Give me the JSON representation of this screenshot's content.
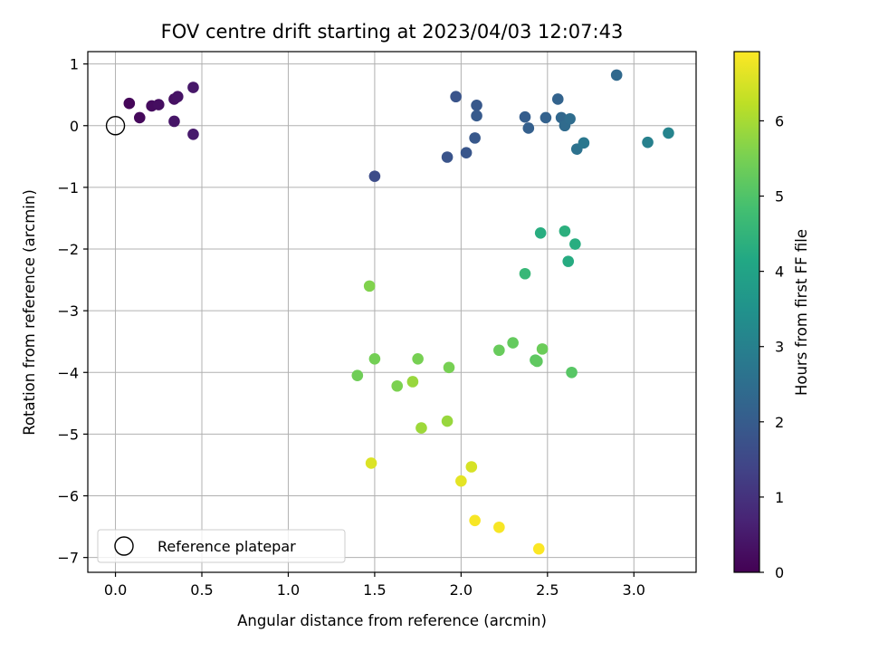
{
  "chart_data": {
    "type": "scatter",
    "title": "FOV centre drift starting at 2023/04/03 12:07:43",
    "xlabel": "Angular distance from reference (arcmin)",
    "ylabel": "Rotation from reference (arcmin)",
    "xlim": [
      -0.16,
      3.36
    ],
    "ylim": [
      -7.24,
      1.2
    ],
    "xticks": [
      0.0,
      0.5,
      1.0,
      1.5,
      2.0,
      2.5,
      3.0
    ],
    "xtick_labels": [
      "0.0",
      "0.5",
      "1.0",
      "1.5",
      "2.0",
      "2.5",
      "3.0"
    ],
    "yticks": [
      1,
      0,
      -1,
      -2,
      -3,
      -4,
      -5,
      -6,
      -7
    ],
    "ytick_labels": [
      "1",
      "0",
      "−1",
      "−2",
      "−3",
      "−4",
      "−5",
      "−6",
      "−7"
    ],
    "grid": true,
    "colormap": "viridis",
    "colorbar": {
      "label": "Hours from first FF file",
      "range": [
        0,
        6.92
      ],
      "ticks": [
        0,
        1,
        2,
        3,
        4,
        5,
        6
      ],
      "tick_labels": [
        "0",
        "1",
        "2",
        "3",
        "4",
        "5",
        "6"
      ]
    },
    "legend": {
      "position": "lower-left",
      "entries": [
        {
          "label": "Reference platepar",
          "marker": "open-circle"
        }
      ]
    },
    "reference_point": {
      "x": 0.0,
      "y": 0.0
    },
    "points": [
      {
        "x": 0.08,
        "y": 0.36,
        "hours": 0.1
      },
      {
        "x": 0.14,
        "y": 0.13,
        "hours": 0.15
      },
      {
        "x": 0.21,
        "y": 0.32,
        "hours": 0.2
      },
      {
        "x": 0.25,
        "y": 0.34,
        "hours": 0.25
      },
      {
        "x": 0.34,
        "y": 0.43,
        "hours": 0.3
      },
      {
        "x": 0.36,
        "y": 0.47,
        "hours": 0.35
      },
      {
        "x": 0.34,
        "y": 0.07,
        "hours": 0.4
      },
      {
        "x": 0.45,
        "y": 0.62,
        "hours": 0.45
      },
      {
        "x": 0.45,
        "y": -0.14,
        "hours": 0.5
      },
      {
        "x": 1.5,
        "y": -0.82,
        "hours": 1.6
      },
      {
        "x": 1.97,
        "y": 0.47,
        "hours": 1.8
      },
      {
        "x": 1.92,
        "y": -0.51,
        "hours": 1.8
      },
      {
        "x": 2.03,
        "y": -0.44,
        "hours": 1.85
      },
      {
        "x": 2.08,
        "y": -0.2,
        "hours": 1.9
      },
      {
        "x": 2.09,
        "y": 0.33,
        "hours": 1.9
      },
      {
        "x": 2.09,
        "y": 0.16,
        "hours": 1.95
      },
      {
        "x": 2.37,
        "y": 0.14,
        "hours": 2.05
      },
      {
        "x": 2.39,
        "y": -0.04,
        "hours": 2.1
      },
      {
        "x": 2.49,
        "y": 0.13,
        "hours": 2.15
      },
      {
        "x": 2.56,
        "y": 0.43,
        "hours": 2.2
      },
      {
        "x": 2.58,
        "y": 0.13,
        "hours": 2.3
      },
      {
        "x": 2.6,
        "y": 0.0,
        "hours": 2.4
      },
      {
        "x": 2.63,
        "y": 0.11,
        "hours": 2.45
      },
      {
        "x": 2.67,
        "y": -0.38,
        "hours": 2.6
      },
      {
        "x": 2.71,
        "y": -0.28,
        "hours": 2.75
      },
      {
        "x": 2.9,
        "y": 0.82,
        "hours": 2.35
      },
      {
        "x": 3.08,
        "y": -0.27,
        "hours": 3.0
      },
      {
        "x": 3.2,
        "y": -0.12,
        "hours": 3.1
      },
      {
        "x": 2.46,
        "y": -1.74,
        "hours": 4.3
      },
      {
        "x": 2.6,
        "y": -1.71,
        "hours": 4.35
      },
      {
        "x": 2.66,
        "y": -1.92,
        "hours": 4.3
      },
      {
        "x": 2.62,
        "y": -2.2,
        "hours": 4.25
      },
      {
        "x": 2.37,
        "y": -2.4,
        "hours": 4.6
      },
      {
        "x": 1.47,
        "y": -2.6,
        "hours": 5.6
      },
      {
        "x": 2.3,
        "y": -3.52,
        "hours": 5.25
      },
      {
        "x": 2.22,
        "y": -3.64,
        "hours": 5.3
      },
      {
        "x": 2.47,
        "y": -3.62,
        "hours": 5.35
      },
      {
        "x": 2.43,
        "y": -3.8,
        "hours": 5.15
      },
      {
        "x": 2.44,
        "y": -3.82,
        "hours": 5.2
      },
      {
        "x": 2.64,
        "y": -4.0,
        "hours": 5.1
      },
      {
        "x": 1.5,
        "y": -3.78,
        "hours": 5.45
      },
      {
        "x": 1.75,
        "y": -3.78,
        "hours": 5.5
      },
      {
        "x": 1.93,
        "y": -3.92,
        "hours": 5.5
      },
      {
        "x": 1.4,
        "y": -4.05,
        "hours": 5.4
      },
      {
        "x": 1.63,
        "y": -4.22,
        "hours": 5.55
      },
      {
        "x": 1.72,
        "y": -4.15,
        "hours": 5.85
      },
      {
        "x": 1.77,
        "y": -4.9,
        "hours": 5.9
      },
      {
        "x": 1.92,
        "y": -4.79,
        "hours": 5.85
      },
      {
        "x": 1.48,
        "y": -5.47,
        "hours": 6.55
      },
      {
        "x": 2.06,
        "y": -5.53,
        "hours": 6.5
      },
      {
        "x": 2.0,
        "y": -5.76,
        "hours": 6.65
      },
      {
        "x": 2.08,
        "y": -6.4,
        "hours": 6.85
      },
      {
        "x": 2.22,
        "y": -6.51,
        "hours": 6.85
      },
      {
        "x": 2.45,
        "y": -6.86,
        "hours": 6.9
      }
    ]
  }
}
